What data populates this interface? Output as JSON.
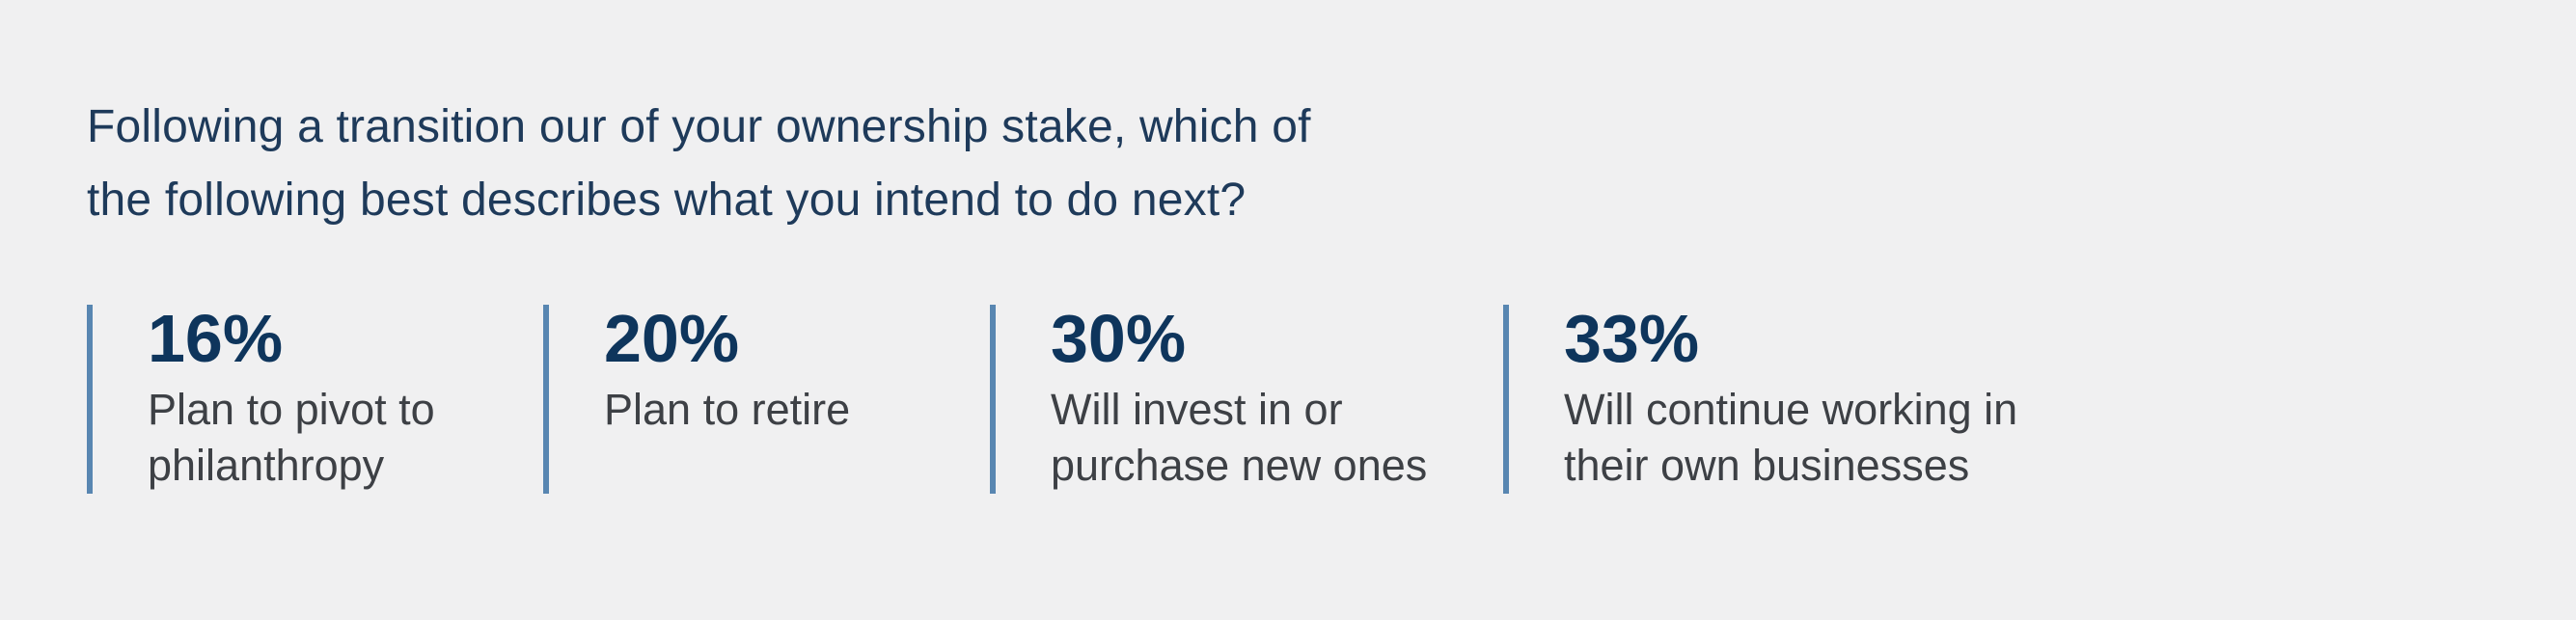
{
  "theme": {
    "bg": "#f0f0f1",
    "heading": "#1e3a5a",
    "accent": "#5886b1",
    "value": "#0e355c",
    "label": "#3d4045"
  },
  "heading": {
    "text": "Following a transition our of your ownership stake, which of the following best describes what you intend to do next?",
    "lines": [
      "Following a transition our of your ownership stake, which of",
      "the following best describes what you intend to do next?"
    ]
  },
  "stats": {
    "items": [
      {
        "value": "16%",
        "label": "Plan to pivot to philanthropy"
      },
      {
        "value": "20%",
        "label": "Plan to retire"
      },
      {
        "value": "30%",
        "label": "Will invest in or purchase new ones"
      },
      {
        "value": "33%",
        "label": "Will continue working in their own businesses"
      }
    ]
  },
  "chart_data": {
    "type": "bar",
    "title": "Following a transition our of your ownership stake, which of the following best describes what you intend to do next?",
    "categories": [
      "Plan to pivot to philanthropy",
      "Plan to retire",
      "Will invest in or purchase new ones",
      "Will continue working in their own businesses"
    ],
    "values": [
      16,
      20,
      30,
      33
    ],
    "unit": "%",
    "xlabel": "",
    "ylabel": "",
    "legend": false,
    "notes": "Survey results displayed as four stat callouts with vertical accent bars, not drawn bars"
  }
}
